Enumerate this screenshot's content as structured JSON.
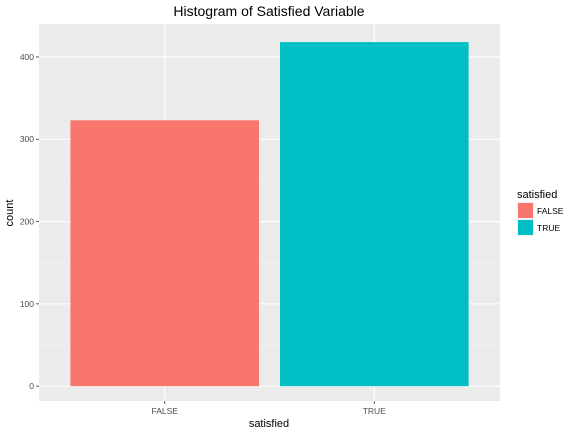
{
  "chart_data": {
    "type": "bar",
    "title": "Histogram of Satisfied Variable",
    "xlabel": "satisfied",
    "ylabel": "count",
    "categories": [
      "FALSE",
      "TRUE"
    ],
    "values": [
      323,
      418
    ],
    "colors": [
      "#F8766D",
      "#00BFC4"
    ],
    "ylim": [
      -18,
      440
    ],
    "yticks": [
      0,
      100,
      200,
      300,
      400
    ],
    "grid": true,
    "panel_background": "#EBEBEB",
    "legend": {
      "title": "satisfied",
      "placement": "right",
      "entries": [
        "FALSE",
        "TRUE"
      ]
    }
  }
}
